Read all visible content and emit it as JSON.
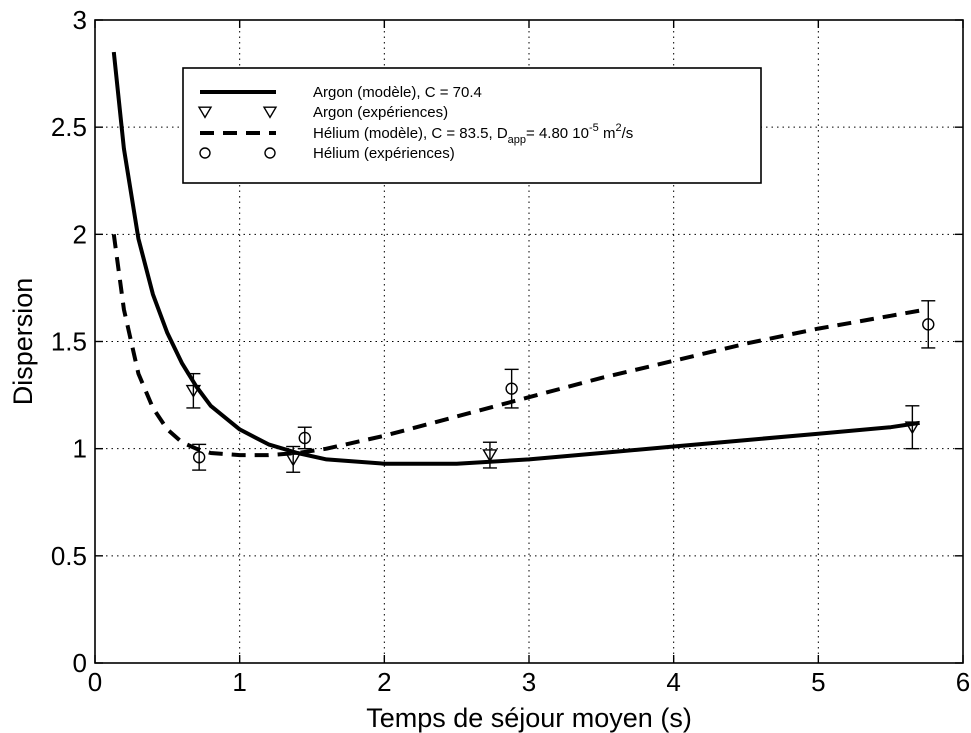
{
  "chart_data": {
    "type": "line",
    "xlabel": "Temps de séjour moyen (s)",
    "ylabel": "Dispersion",
    "xlim": [
      0,
      6
    ],
    "ylim": [
      0,
      3
    ],
    "xticks": [
      0,
      1,
      2,
      3,
      4,
      5,
      6
    ],
    "yticks": [
      0,
      0.5,
      1,
      1.5,
      2,
      2.5,
      3
    ],
    "xtick_labels": [
      "0",
      "1",
      "2",
      "3",
      "4",
      "5",
      "6"
    ],
    "ytick_labels": [
      "0",
      "0.5",
      "1",
      "1.5",
      "2",
      "2.5",
      "3"
    ],
    "grid": true,
    "legend_position": "top-center",
    "series": [
      {
        "name": "Argon (modèle), C = 70.4",
        "kind": "line",
        "style": "solid",
        "color": "#000000",
        "x": [
          0.13,
          0.2,
          0.3,
          0.4,
          0.5,
          0.6,
          0.7,
          0.8,
          1.0,
          1.2,
          1.4,
          1.6,
          2.0,
          2.5,
          3.0,
          3.5,
          4.0,
          4.5,
          5.0,
          5.5,
          5.7
        ],
        "y": [
          2.85,
          2.4,
          1.98,
          1.72,
          1.54,
          1.4,
          1.29,
          1.2,
          1.09,
          1.02,
          0.98,
          0.95,
          0.93,
          0.93,
          0.95,
          0.98,
          1.01,
          1.04,
          1.07,
          1.1,
          1.12
        ]
      },
      {
        "name": "Argon (expériences)",
        "kind": "scatter",
        "marker": "triangle-down",
        "color": "#000000",
        "x": [
          0.68,
          1.37,
          2.73,
          5.65
        ],
        "y": [
          1.27,
          0.95,
          0.97,
          1.1
        ],
        "err": [
          0.08,
          0.06,
          0.06,
          0.1
        ]
      },
      {
        "name": "Hélium (modèle), C = 83.5, D",
        "legend_subscript": "app",
        "legend_tail": "= 4.80 10",
        "legend_exponent": "-5",
        "legend_unit": "m",
        "legend_unit_exponent": "2",
        "legend_unit_tail": "/s",
        "kind": "line",
        "style": "dashed",
        "color": "#000000",
        "x": [
          0.13,
          0.2,
          0.3,
          0.4,
          0.5,
          0.6,
          0.7,
          0.8,
          1.0,
          1.2,
          1.4,
          1.6,
          2.0,
          2.5,
          3.0,
          3.5,
          4.0,
          4.5,
          5.0,
          5.5,
          5.75
        ],
        "y": [
          2.0,
          1.65,
          1.35,
          1.19,
          1.09,
          1.03,
          1.0,
          0.98,
          0.97,
          0.97,
          0.98,
          1.0,
          1.06,
          1.15,
          1.24,
          1.33,
          1.41,
          1.49,
          1.56,
          1.62,
          1.65
        ]
      },
      {
        "name": "Hélium (expériences)",
        "kind": "scatter",
        "marker": "circle",
        "color": "#000000",
        "x": [
          0.72,
          1.45,
          2.88,
          5.76
        ],
        "y": [
          0.96,
          1.05,
          1.28,
          1.58
        ],
        "err": [
          0.06,
          0.05,
          0.09,
          0.11
        ]
      }
    ]
  }
}
